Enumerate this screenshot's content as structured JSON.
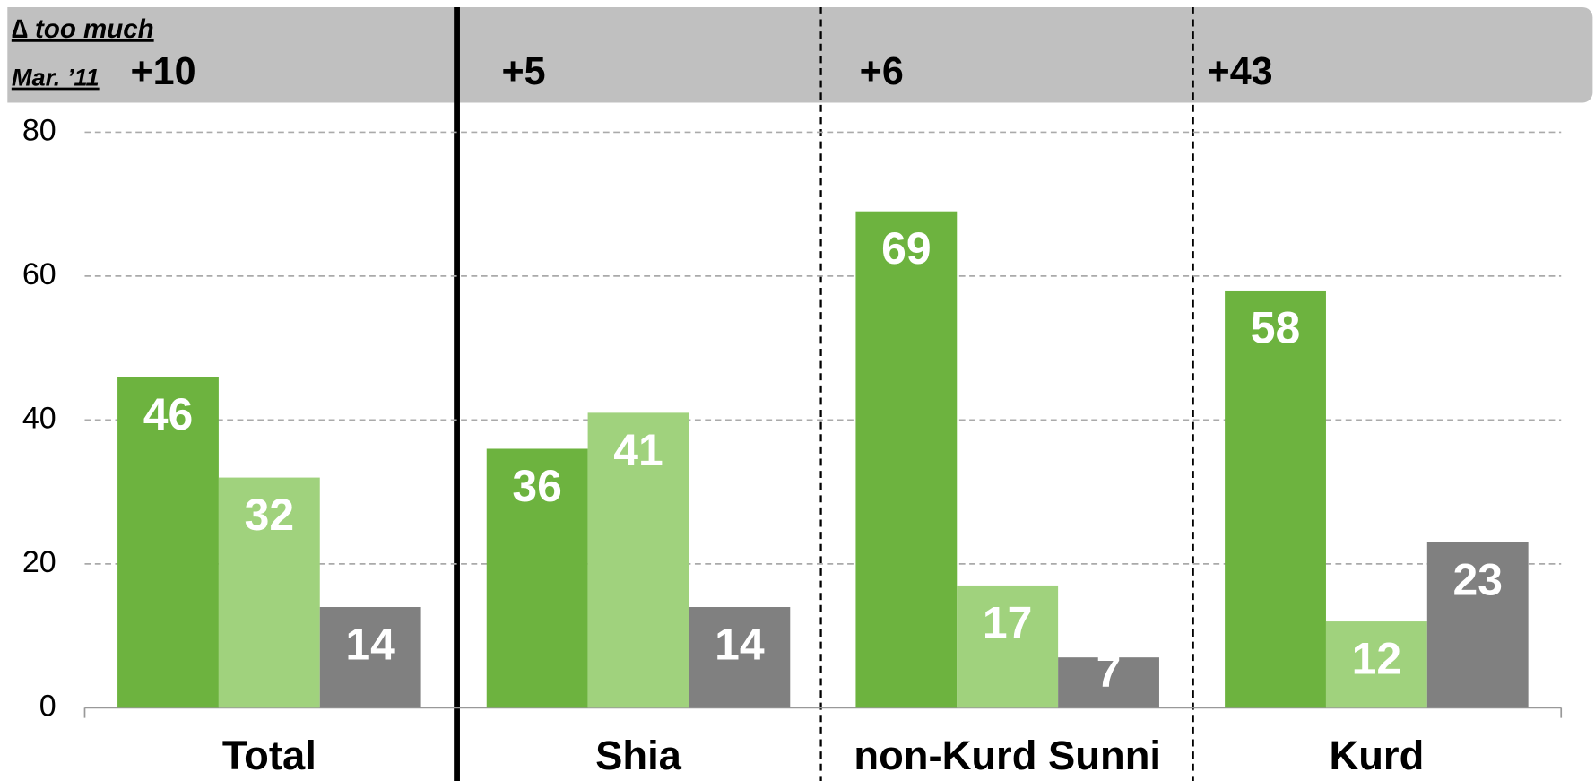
{
  "chart_data": {
    "type": "bar",
    "header": {
      "line1": "∆ too much",
      "line2": "Mar. ’11"
    },
    "annotations": [
      "+10",
      "+5",
      "+6",
      "+43"
    ],
    "categories": [
      "Total",
      "Shia",
      "non-Kurd Sunni",
      "Kurd"
    ],
    "series": [
      {
        "color": "#6db33f",
        "values": [
          46,
          36,
          69,
          58
        ]
      },
      {
        "color": "#a0d27d",
        "values": [
          32,
          41,
          17,
          12
        ]
      },
      {
        "color": "#808080",
        "values": [
          14,
          14,
          7,
          23
        ]
      }
    ],
    "ylim": [
      0,
      80
    ],
    "yticks": [
      0,
      20,
      40,
      60,
      80
    ],
    "grid": true
  }
}
